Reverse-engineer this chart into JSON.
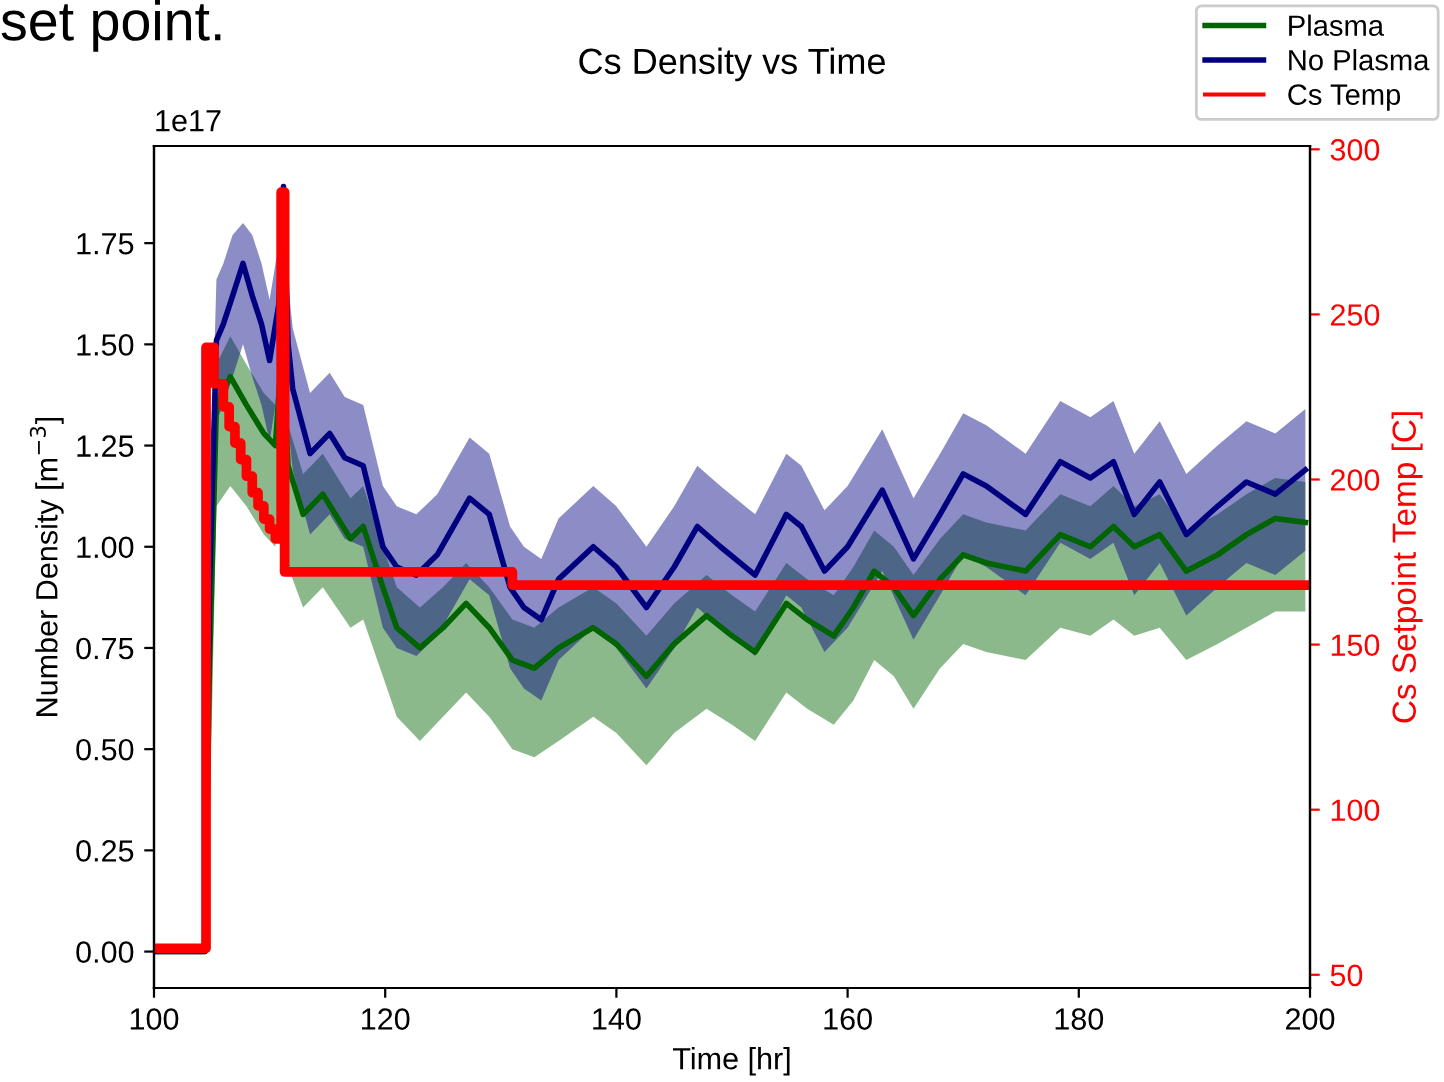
{
  "chart_data": {
    "type": "line",
    "title": "Cs Density vs Time",
    "xlabel": "Time [hr]",
    "ylabel": "Number Density [m$^{−3}$]",
    "y2label": "Cs Setpoint Temp [C]",
    "annotations": [
      "set point.",
      "1e17"
    ],
    "xlim": [
      100,
      200
    ],
    "xticks": [
      100,
      120,
      140,
      160,
      180,
      200
    ],
    "ylim": [
      -0.09,
      1.99
    ],
    "yticks": [
      {
        "value": 0,
        "label": "0.00"
      },
      {
        "value": 0.25,
        "label": "0.25"
      },
      {
        "value": 0.5,
        "label": "0.50"
      },
      {
        "value": 0.75,
        "label": "0.75"
      },
      {
        "value": 1.0,
        "label": "1.00"
      },
      {
        "value": 1.25,
        "label": "1.25"
      },
      {
        "value": 1.5,
        "label": "1.50"
      },
      {
        "value": 1.75,
        "label": "1.75"
      }
    ],
    "y2lim": [
      46,
      301
    ],
    "y2ticks": [
      50,
      100,
      150,
      200,
      250,
      300
    ],
    "grid": false,
    "legend": "top right",
    "series": [
      {
        "name": "Plasma",
        "color": "#006400",
        "x": [
          100,
          104.4,
          104.8,
          105.4,
          106.6,
          108,
          109.5,
          110.5,
          111.1,
          111.6,
          112.9,
          114.6,
          117,
          118.1,
          119.8,
          121,
          123,
          125,
          127,
          129,
          131,
          132.9,
          135,
          138,
          140,
          142.6,
          145,
          147.8,
          150,
          152,
          154.7,
          156.5,
          158.8,
          160.5,
          162.3,
          164,
          165.7,
          168,
          170,
          172,
          175.4,
          178.4,
          181,
          183,
          184.8,
          187,
          189.3,
          192,
          194.5,
          197,
          199.6
        ],
        "values": [
          0,
          0,
          0.7,
          1.35,
          1.42,
          1.35,
          1.28,
          1.25,
          1.5,
          1.2,
          1.08,
          1.13,
          1.02,
          1.05,
          0.9,
          0.8,
          0.75,
          0.8,
          0.86,
          0.8,
          0.72,
          0.7,
          0.75,
          0.8,
          0.76,
          0.68,
          0.76,
          0.83,
          0.78,
          0.74,
          0.86,
          0.82,
          0.78,
          0.85,
          0.94,
          0.9,
          0.83,
          0.92,
          0.98,
          0.96,
          0.94,
          1.03,
          1.0,
          1.05,
          1.0,
          1.03,
          0.94,
          0.98,
          1.03,
          1.07,
          1.06
        ],
        "upper": [
          0,
          0,
          0.8,
          1.45,
          1.52,
          1.45,
          1.38,
          1.35,
          1.6,
          1.3,
          1.18,
          1.23,
          1.12,
          1.15,
          1.0,
          0.9,
          0.85,
          0.9,
          0.96,
          0.9,
          0.82,
          0.8,
          0.85,
          0.9,
          0.86,
          0.78,
          0.86,
          0.93,
          0.88,
          0.84,
          0.96,
          0.92,
          0.88,
          0.95,
          1.04,
          1.0,
          0.93,
          1.02,
          1.08,
          1.06,
          1.04,
          1.13,
          1.1,
          1.15,
          1.1,
          1.13,
          1.04,
          1.08,
          1.13,
          1.17,
          1.16
        ],
        "lower": [
          0,
          0,
          0.3,
          1.1,
          1.15,
          1.1,
          1.03,
          1.0,
          1.2,
          0.95,
          0.85,
          0.9,
          0.8,
          0.82,
          0.68,
          0.58,
          0.52,
          0.58,
          0.64,
          0.58,
          0.5,
          0.48,
          0.52,
          0.58,
          0.54,
          0.46,
          0.54,
          0.6,
          0.56,
          0.52,
          0.64,
          0.6,
          0.56,
          0.62,
          0.72,
          0.68,
          0.6,
          0.7,
          0.76,
          0.74,
          0.72,
          0.8,
          0.78,
          0.82,
          0.78,
          0.8,
          0.72,
          0.76,
          0.8,
          0.84,
          0.84
        ]
      },
      {
        "name": "No Plasma",
        "color": "#000080",
        "x": [
          100,
          104.4,
          104.8,
          105.4,
          106,
          106.8,
          107.7,
          108.5,
          109.3,
          110,
          110.8,
          111.2,
          111.6,
          112,
          113.5,
          115.2,
          116.5,
          118.1,
          119.8,
          121,
          122.7,
          124.5,
          127.3,
          129,
          130.8,
          132,
          133.5,
          135,
          138,
          140,
          142.6,
          145,
          147,
          149,
          152,
          154.7,
          156,
          158,
          160,
          163,
          165.7,
          168,
          170,
          172,
          175.4,
          178.4,
          181,
          183,
          184.8,
          187,
          189.3,
          192,
          194.5,
          197,
          199.6
        ],
        "values": [
          0,
          0,
          0.9,
          1.51,
          1.55,
          1.62,
          1.7,
          1.62,
          1.55,
          1.46,
          1.6,
          1.89,
          1.5,
          1.39,
          1.23,
          1.28,
          1.22,
          1.2,
          1.0,
          0.95,
          0.93,
          0.98,
          1.12,
          1.08,
          0.9,
          0.85,
          0.82,
          0.92,
          1.0,
          0.95,
          0.85,
          0.95,
          1.05,
          1.0,
          0.93,
          1.08,
          1.05,
          0.94,
          1.0,
          1.14,
          0.97,
          1.08,
          1.18,
          1.15,
          1.08,
          1.21,
          1.17,
          1.21,
          1.08,
          1.16,
          1.03,
          1.1,
          1.16,
          1.13,
          1.19
        ],
        "upper": [
          0,
          0,
          1.05,
          1.66,
          1.7,
          1.77,
          1.8,
          1.77,
          1.7,
          1.61,
          1.75,
          1.9,
          1.65,
          1.54,
          1.38,
          1.43,
          1.37,
          1.35,
          1.15,
          1.1,
          1.08,
          1.13,
          1.27,
          1.23,
          1.05,
          1.0,
          0.97,
          1.07,
          1.15,
          1.1,
          1.0,
          1.1,
          1.2,
          1.15,
          1.08,
          1.23,
          1.2,
          1.09,
          1.15,
          1.29,
          1.12,
          1.23,
          1.33,
          1.3,
          1.23,
          1.36,
          1.32,
          1.36,
          1.23,
          1.31,
          1.18,
          1.25,
          1.31,
          1.28,
          1.34
        ],
        "lower": [
          0,
          0,
          0.7,
          1.31,
          1.35,
          1.42,
          1.5,
          1.42,
          1.35,
          1.26,
          1.4,
          1.69,
          1.3,
          1.19,
          1.03,
          1.08,
          1.02,
          1.0,
          0.8,
          0.75,
          0.73,
          0.78,
          0.92,
          0.88,
          0.7,
          0.65,
          0.62,
          0.72,
          0.8,
          0.75,
          0.65,
          0.75,
          0.85,
          0.8,
          0.73,
          0.88,
          0.85,
          0.74,
          0.8,
          0.94,
          0.77,
          0.88,
          0.98,
          0.95,
          0.88,
          1.01,
          0.97,
          1.01,
          0.88,
          0.96,
          0.83,
          0.9,
          0.96,
          0.93,
          0.99
        ]
      },
      {
        "type": "step",
        "name": "Cs Temp",
        "color": "#ff0000",
        "axis": "y2",
        "x": [
          100,
          104.5,
          105.2,
          106,
          106.5,
          107,
          107.5,
          108,
          108.5,
          109,
          109.5,
          110,
          110.5,
          111,
          111.3,
          131,
          200
        ],
        "values": [
          58,
          240,
          229,
          222,
          216,
          211,
          206,
          201,
          196,
          192,
          188,
          185,
          182,
          287,
          172,
          168,
          168
        ]
      }
    ]
  }
}
